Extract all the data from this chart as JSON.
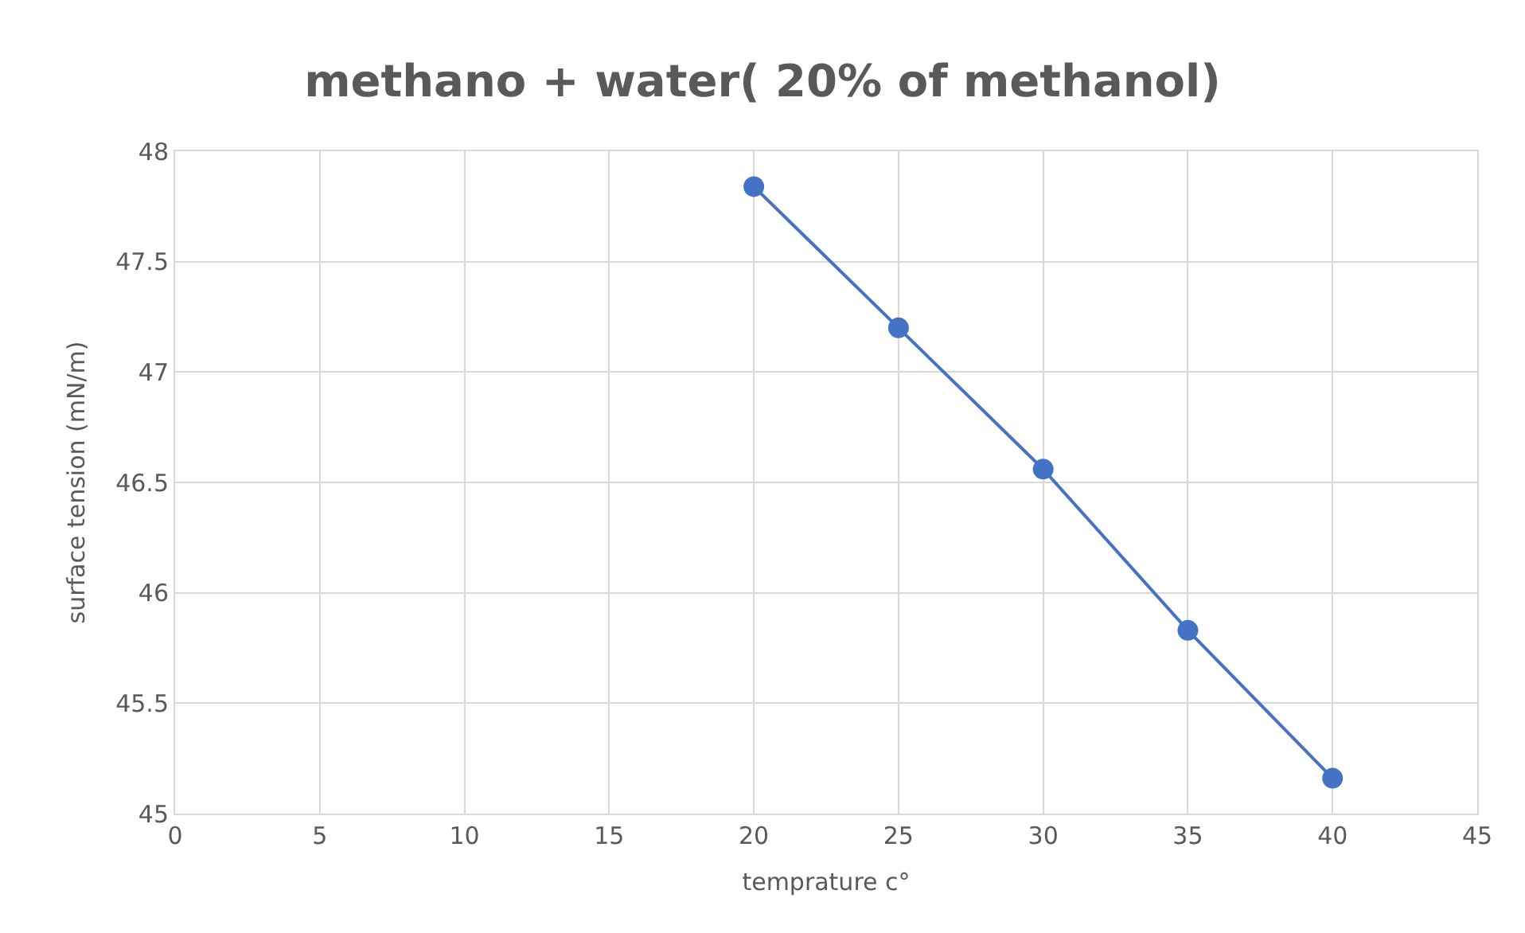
{
  "chart_data": {
    "type": "line",
    "title": "methano + water( 20% of methanol)",
    "xlabel": "temprature c°",
    "ylabel": "surface tension (mN/m)",
    "x": [
      20,
      25,
      30,
      35,
      40
    ],
    "series": [
      {
        "color": "#4472c4",
        "values": [
          47.84,
          47.2,
          46.56,
          45.83,
          45.16
        ]
      }
    ],
    "xlim": [
      0,
      45
    ],
    "xticks": [
      0,
      5,
      10,
      15,
      20,
      25,
      30,
      35,
      40,
      45
    ],
    "ylim": [
      45,
      48
    ],
    "yticks": [
      45,
      45.5,
      46,
      46.5,
      47,
      47.5,
      48
    ],
    "grid": true,
    "marker": "circle",
    "line_style": "solid",
    "legend": false
  }
}
